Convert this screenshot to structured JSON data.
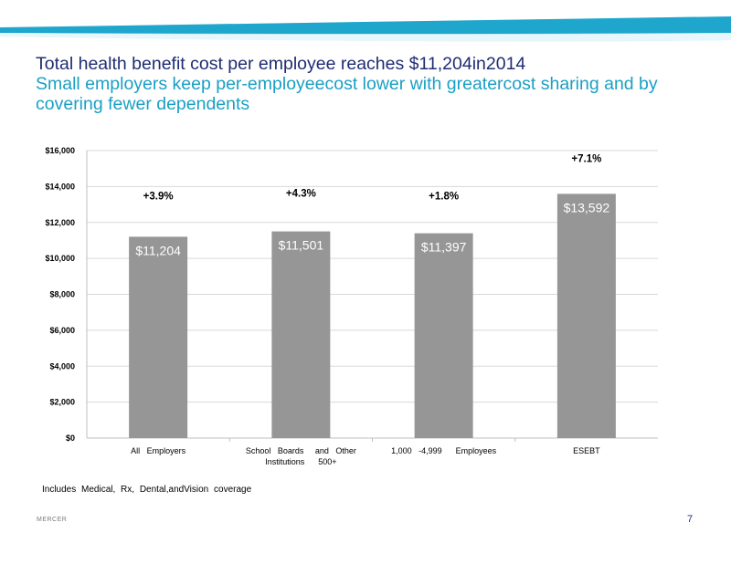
{
  "header": {
    "title": "Total health  benefit cost per employee reaches $11,204in2014",
    "subtitle": "Small employers keep per-employeecost lower with greatercost sharing and by covering fewer dependents"
  },
  "chart_data": {
    "type": "bar",
    "categories": [
      "All   Employers",
      "School   Boards   and   Other Institutions   500+",
      "1,000  -4,999   Employees",
      "ESEBT"
    ],
    "category_lines": [
      [
        "All   Employers"
      ],
      [
        "School   Boards     and   Other",
        "Institutions      500+"
      ],
      [
        "1,000   -4,999      Employees"
      ],
      [
        "ESEBT"
      ]
    ],
    "values": [
      11204,
      11501,
      11397,
      13592
    ],
    "value_labels": [
      "$11,204",
      "$11,501",
      "$11,397",
      "$13,592"
    ],
    "growth_labels": [
      "+3.9%",
      "+4.3%",
      "+1.8%",
      "+7.1%"
    ],
    "yticks": [
      "$0",
      "$2,000",
      "$4,000",
      "$6,000",
      "$8,000",
      "$10,000",
      "$12,000",
      "$14,000",
      "$16,000"
    ],
    "ylim": [
      0,
      16000
    ],
    "grid": true,
    "bar_color": "#969696"
  },
  "footer": {
    "note": "Includes Medical, Rx, Dental,andVision coverage",
    "brand": "MERCER",
    "page_number": "7"
  },
  "colors": {
    "title": "#1f2d73",
    "subtitle": "#1a9fc4",
    "banner_light": "#bfe8f4",
    "banner_dark": "#1fa6cc"
  }
}
